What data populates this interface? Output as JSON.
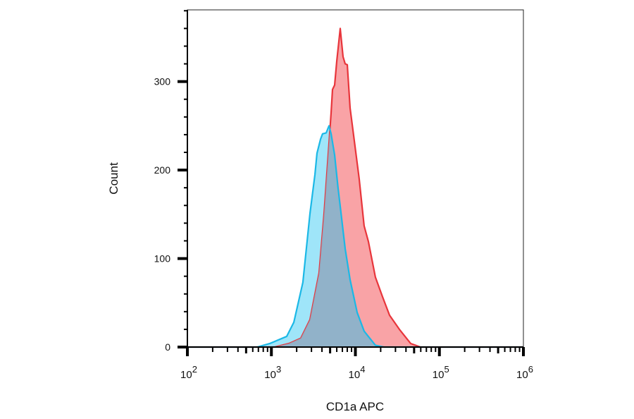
{
  "chart_data": {
    "type": "area",
    "title": "",
    "xlabel": "CD1a APC",
    "ylabel": "Count",
    "xscale": "log",
    "xlim": [
      100,
      1000000
    ],
    "ylim": [
      0,
      381
    ],
    "grid": false,
    "legend": "none",
    "x_ticks": [
      {
        "value": 100,
        "base": "10",
        "exp": "2"
      },
      {
        "value": 1000,
        "base": "10",
        "exp": "3"
      },
      {
        "value": 10000,
        "base": "10",
        "exp": "4"
      },
      {
        "value": 100000,
        "base": "10",
        "exp": "5"
      },
      {
        "value": 1000000,
        "base": "10",
        "exp": "6"
      }
    ],
    "y_ticks": [
      {
        "value": 0,
        "label": "0"
      },
      {
        "value": 100,
        "label": "100"
      },
      {
        "value": 200,
        "label": "200"
      },
      {
        "value": 300,
        "label": "300"
      }
    ],
    "series": [
      {
        "color": "#e8353b",
        "fill": "#f9a3a6",
        "x": [
          1100,
          1620,
          2240,
          2880,
          3700,
          4240,
          4850,
          5140,
          5340,
          5660,
          6000,
          6600,
          7130,
          7560,
          8010,
          8650,
          9710,
          11100,
          12700,
          14300,
          17300,
          21000,
          25500,
          33400,
          45500,
          59700
        ],
        "y": [
          0,
          4,
          10,
          31,
          84,
          151,
          230,
          265,
          291,
          296,
          323,
          360,
          328,
          320,
          319,
          270,
          233,
          190,
          137,
          119,
          79,
          57,
          36,
          20,
          4,
          0
        ]
      },
      {
        "color": "#1bb8e6",
        "fill": "#9fe5f9",
        "overlap_fill": "#8facc3",
        "x": [
          676,
          957,
          1520,
          1850,
          2370,
          2880,
          3300,
          3490,
          3850,
          4070,
          4490,
          4850,
          5140,
          5660,
          6230,
          6600,
          7560,
          8650,
          10500,
          12700,
          17300,
          21800
        ],
        "y": [
          0,
          4,
          12,
          28,
          73,
          151,
          195,
          219,
          235,
          241,
          242,
          250,
          241,
          217,
          179,
          159,
          111,
          76,
          39,
          18,
          2,
          0
        ]
      }
    ]
  }
}
